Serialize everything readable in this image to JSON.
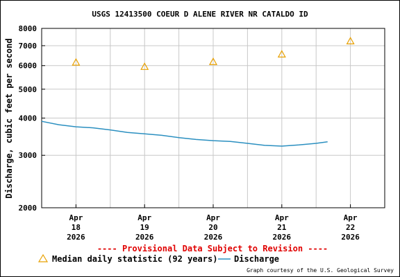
{
  "chart_data": {
    "type": "scatter",
    "title": "USGS 12413500 COEUR D ALENE RIVER NR CATALDO ID",
    "ylabel": "Discharge, cubic feet per second",
    "yscale": "log",
    "ylim": [
      2000,
      8000
    ],
    "yticks": [
      2000,
      3000,
      4000,
      5000,
      6000,
      7000,
      8000
    ],
    "xlim": [
      "2026-04-17T12:00",
      "2026-04-22T12:00"
    ],
    "xticks": [
      {
        "month": "Apr",
        "day": "18",
        "year": "2026",
        "x": "2026-04-18T00:00"
      },
      {
        "month": "Apr",
        "day": "19",
        "year": "2026",
        "x": "2026-04-19T00:00"
      },
      {
        "month": "Apr",
        "day": "20",
        "year": "2026",
        "x": "2026-04-20T00:00"
      },
      {
        "month": "Apr",
        "day": "21",
        "year": "2026",
        "x": "2026-04-21T00:00"
      },
      {
        "month": "Apr",
        "day": "22",
        "year": "2026",
        "x": "2026-04-22T00:00"
      }
    ],
    "grid": true,
    "legend_placement": "bottom",
    "notice": "---- Provisional Data Subject to Revision ----",
    "credit": "Graph courtesy of the U.S. Geological Survey",
    "series": [
      {
        "name": "Median daily statistic (92 years)",
        "type": "scatter",
        "marker": "triangle",
        "color": "#e8a000",
        "points": [
          {
            "x": "2026-04-18T00:00",
            "y": 6150
          },
          {
            "x": "2026-04-19T00:00",
            "y": 5950
          },
          {
            "x": "2026-04-20T00:00",
            "y": 6180
          },
          {
            "x": "2026-04-21T00:00",
            "y": 6550
          },
          {
            "x": "2026-04-22T00:00",
            "y": 7250
          }
        ]
      },
      {
        "name": "Discharge",
        "type": "line",
        "color": "#2a8fc0",
        "points": [
          {
            "x": "2026-04-17T12:00",
            "y": 3900
          },
          {
            "x": "2026-04-17T18:00",
            "y": 3800
          },
          {
            "x": "2026-04-18T00:00",
            "y": 3740
          },
          {
            "x": "2026-04-18T06:00",
            "y": 3710
          },
          {
            "x": "2026-04-18T12:00",
            "y": 3650
          },
          {
            "x": "2026-04-18T18:00",
            "y": 3580
          },
          {
            "x": "2026-04-19T00:00",
            "y": 3540
          },
          {
            "x": "2026-04-19T06:00",
            "y": 3500
          },
          {
            "x": "2026-04-19T12:00",
            "y": 3440
          },
          {
            "x": "2026-04-19T18:00",
            "y": 3390
          },
          {
            "x": "2026-04-20T00:00",
            "y": 3360
          },
          {
            "x": "2026-04-20T06:00",
            "y": 3340
          },
          {
            "x": "2026-04-20T12:00",
            "y": 3290
          },
          {
            "x": "2026-04-20T18:00",
            "y": 3240
          },
          {
            "x": "2026-04-21T00:00",
            "y": 3220
          },
          {
            "x": "2026-04-21T06:00",
            "y": 3250
          },
          {
            "x": "2026-04-21T12:00",
            "y": 3290
          },
          {
            "x": "2026-04-21T16:00",
            "y": 3330
          }
        ]
      }
    ]
  }
}
